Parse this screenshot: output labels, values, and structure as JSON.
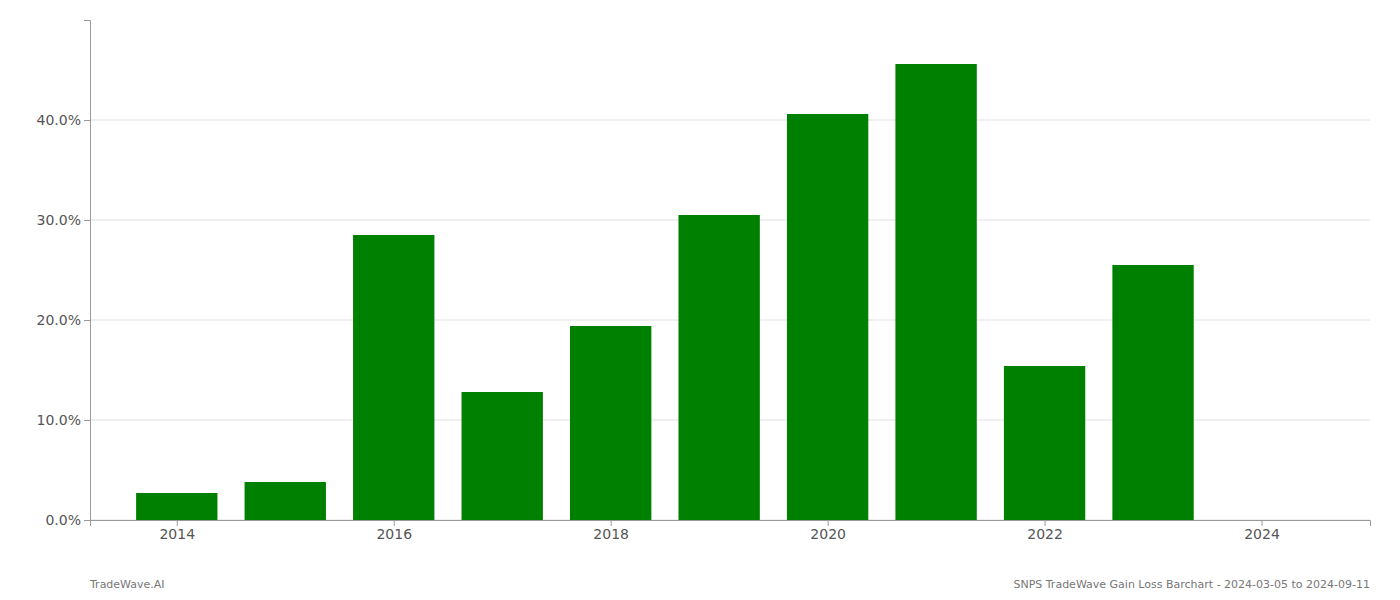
{
  "chart_data": {
    "type": "bar",
    "x": [
      2014,
      2015,
      2016,
      2017,
      2018,
      2019,
      2020,
      2021,
      2022,
      2023
    ],
    "values": [
      0.027,
      0.038,
      0.285,
      0.128,
      0.194,
      0.305,
      0.406,
      0.456,
      0.154,
      0.255
    ],
    "color": "#008000",
    "xlim": [
      2013.2,
      2025.0
    ],
    "xticks": [
      2014,
      2016,
      2018,
      2020,
      2022,
      2024
    ],
    "ylim": [
      0,
      0.5
    ],
    "yticks": [
      {
        "value": 0,
        "label": "0.0%"
      },
      {
        "value": 0.1,
        "label": "10.0%"
      },
      {
        "value": 0.2,
        "label": "20.0%"
      },
      {
        "value": 0.3,
        "label": "30.0%"
      },
      {
        "value": 0.4,
        "label": "40.0%"
      }
    ],
    "grid": true,
    "annotations": [
      "TradeWave.AI",
      "SNPS TradeWave Gain Loss Barchart - 2024-03-05 to 2024-09-11"
    ]
  }
}
